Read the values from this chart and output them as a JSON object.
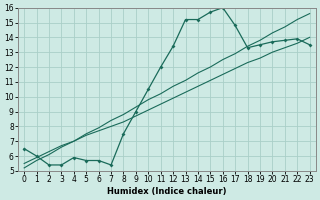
{
  "xlabel": "Humidex (Indice chaleur)",
  "background_color": "#ceeae4",
  "grid_color": "#aacfc8",
  "line_color": "#1a6b5a",
  "x_values": [
    0,
    1,
    2,
    3,
    4,
    5,
    6,
    7,
    8,
    9,
    10,
    11,
    12,
    13,
    14,
    15,
    16,
    17,
    18,
    19,
    20,
    21,
    22,
    23
  ],
  "line1_y": [
    6.5,
    6.0,
    5.4,
    5.4,
    5.9,
    5.7,
    5.7,
    5.4,
    7.5,
    9.0,
    10.5,
    12.0,
    13.4,
    15.2,
    15.2,
    15.7,
    16.0,
    14.8,
    13.3,
    13.5,
    13.7,
    13.8,
    13.9,
    13.5
  ],
  "line2_y": [
    5.5,
    5.9,
    6.3,
    6.7,
    7.0,
    7.4,
    7.7,
    8.0,
    8.3,
    8.7,
    9.1,
    9.5,
    9.9,
    10.3,
    10.7,
    11.1,
    11.5,
    11.9,
    12.3,
    12.6,
    13.0,
    13.3,
    13.6,
    14.0
  ],
  "line3_y": [
    5.2,
    5.7,
    6.1,
    6.6,
    7.0,
    7.5,
    7.9,
    8.4,
    8.8,
    9.3,
    9.8,
    10.2,
    10.7,
    11.1,
    11.6,
    12.0,
    12.5,
    12.9,
    13.4,
    13.8,
    14.3,
    14.7,
    15.2,
    15.6
  ],
  "ylim": [
    5,
    16
  ],
  "xlim": [
    -0.5,
    23.5
  ],
  "yticks": [
    5,
    6,
    7,
    8,
    9,
    10,
    11,
    12,
    13,
    14,
    15,
    16
  ],
  "xticks": [
    0,
    1,
    2,
    3,
    4,
    5,
    6,
    7,
    8,
    9,
    10,
    11,
    12,
    13,
    14,
    15,
    16,
    17,
    18,
    19,
    20,
    21,
    22,
    23
  ],
  "tick_fontsize": 5.5,
  "xlabel_fontsize": 6.0
}
